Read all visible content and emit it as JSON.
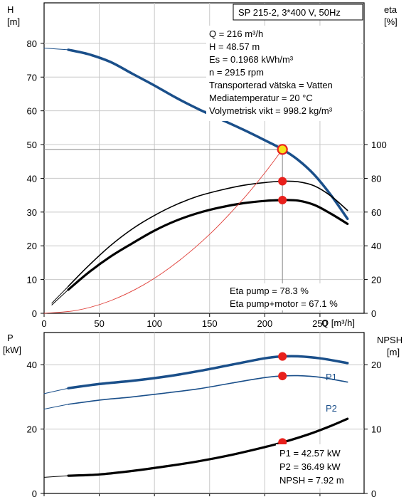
{
  "title_box": "SP 215-2, 3*400 V, 50Hz",
  "info_lines": [
    "Q = 216 m³/h",
    "H = 48.57 m",
    "Es = 0.1968 kWh/m³",
    "n = 2915 rpm",
    "Transporterad vätska = Vatten",
    "Mediatemperatur = 20 °C",
    "Volymetrisk vikt = 998.2 kg/m³"
  ],
  "eta_notes": [
    "Eta pump = 78.3 %",
    "Eta pump+motor = 67.1 %"
  ],
  "power_notes": [
    "P1 = 42.57 kW",
    "P2 = 36.49 kW",
    "NPSH = 7.92 m"
  ],
  "colors": {
    "blue": "#1a4f8a",
    "black": "#000000",
    "red_curve": "#e0403a",
    "marker": "#e8201c",
    "grid": "#c8c8c8",
    "duty_line": "#888888"
  },
  "chart_data": [
    {
      "type": "line",
      "id": "head_efficiency",
      "xlabel": "Q [m³/h]",
      "ylabel": "H\n[m]",
      "y2label": "eta\n[%]",
      "xlim": [
        0,
        290
      ],
      "ylim": [
        0,
        92
      ],
      "y2lim": [
        0,
        184
      ],
      "xticks": [
        0,
        50,
        100,
        150,
        200,
        250
      ],
      "yticks": [
        0,
        10,
        20,
        30,
        40,
        50,
        60,
        70,
        80
      ],
      "y2ticks": [
        0,
        20,
        40,
        60,
        80,
        100
      ],
      "grid": true,
      "duty_point": {
        "x": 216,
        "y": 48.57
      },
      "series": [
        {
          "key": "head",
          "axis": "left",
          "color": "blue",
          "width": 3.5,
          "x": [
            22,
            40,
            60,
            80,
            100,
            120,
            140,
            160,
            180,
            200,
            216,
            230,
            245,
            260,
            275
          ],
          "y": [
            78.1,
            76.8,
            74.5,
            71.0,
            67.5,
            63.8,
            60.5,
            57.5,
            54.5,
            51.3,
            48.57,
            45.5,
            41.0,
            35.0,
            28.0
          ]
        },
        {
          "key": "eta_pump",
          "axis": "right",
          "color": "black",
          "width": 1.6,
          "x": [
            22,
            40,
            60,
            80,
            100,
            120,
            140,
            160,
            180,
            200,
            216,
            230,
            245,
            260,
            275
          ],
          "y": [
            16.0,
            28.0,
            40.0,
            50.0,
            58.0,
            64.5,
            69.5,
            73.0,
            75.8,
            77.5,
            78.3,
            78.0,
            75.5,
            69.5,
            61.0
          ]
        },
        {
          "key": "eta_pump_motor",
          "axis": "right",
          "color": "black",
          "width": 3.2,
          "x": [
            22,
            40,
            60,
            80,
            100,
            120,
            140,
            160,
            180,
            200,
            216,
            230,
            245,
            260,
            275
          ],
          "y": [
            14.0,
            24.0,
            33.5,
            41.5,
            49.0,
            55.0,
            59.5,
            62.8,
            65.2,
            66.6,
            67.1,
            66.8,
            64.2,
            59.0,
            53.0
          ]
        },
        {
          "key": "eta_extension",
          "axis": "right",
          "color": "black",
          "width": 1.0,
          "x": [
            7,
            22
          ],
          "y": [
            6.0,
            16.0
          ]
        },
        {
          "key": "eta2_extension",
          "axis": "right",
          "color": "black",
          "width": 1.0,
          "x": [
            7,
            22
          ],
          "y": [
            5.0,
            14.0
          ]
        },
        {
          "key": "system_curve",
          "axis": "left",
          "color": "red_curve",
          "width": 0.9,
          "x": [
            0,
            30,
            60,
            90,
            120,
            150,
            180,
            200,
            216
          ],
          "y": [
            0,
            0.9,
            3.7,
            8.4,
            15.0,
            23.4,
            33.7,
            41.6,
            48.57
          ]
        },
        {
          "key": "head_extension",
          "axis": "left",
          "color": "blue",
          "width": 1.0,
          "x": [
            0,
            22
          ],
          "y": [
            78.6,
            78.1
          ]
        }
      ],
      "markers": [
        {
          "x": 216,
          "y": 48.57,
          "axis": "left",
          "style": "duty"
        },
        {
          "x": 216,
          "y": 78.3,
          "axis": "right",
          "style": "dot"
        },
        {
          "x": 216,
          "y": 67.1,
          "axis": "right",
          "style": "dot"
        }
      ]
    },
    {
      "type": "line",
      "id": "power_npsh",
      "ylabel": "P\n[kW]",
      "y2label": "NPSH\n[m]",
      "xlim": [
        0,
        290
      ],
      "ylim": [
        0,
        50
      ],
      "y2lim": [
        0,
        25
      ],
      "yticks": [
        0,
        20,
        40
      ],
      "y2ticks": [
        0,
        10,
        20
      ],
      "grid": true,
      "series": [
        {
          "key": "P1",
          "name": "P1",
          "axis": "left",
          "color": "blue",
          "width": 3.5,
          "x": [
            22,
            50,
            80,
            110,
            140,
            170,
            200,
            216,
            230,
            250,
            275
          ],
          "y": [
            32.7,
            34.0,
            35.0,
            36.3,
            38.0,
            40.0,
            42.0,
            42.57,
            42.6,
            42.0,
            40.5
          ]
        },
        {
          "key": "P1_ext",
          "axis": "left",
          "color": "blue",
          "width": 1.0,
          "x": [
            0,
            22
          ],
          "y": [
            31.0,
            32.7
          ]
        },
        {
          "key": "P2",
          "name": "P2",
          "axis": "left",
          "color": "blue",
          "width": 1.6,
          "x": [
            22,
            50,
            80,
            110,
            140,
            170,
            200,
            216,
            230,
            250,
            275
          ],
          "y": [
            27.7,
            29.0,
            30.0,
            31.2,
            32.5,
            34.3,
            36.0,
            36.49,
            36.6,
            36.1,
            34.6
          ]
        },
        {
          "key": "P2_ext",
          "axis": "left",
          "color": "blue",
          "width": 1.0,
          "x": [
            0,
            22
          ],
          "y": [
            26.2,
            27.7
          ]
        },
        {
          "key": "NPSH",
          "axis": "right",
          "color": "black",
          "width": 3.2,
          "x": [
            22,
            50,
            80,
            110,
            140,
            170,
            200,
            216,
            240,
            260,
            275
          ],
          "y": [
            2.75,
            2.95,
            3.5,
            4.2,
            5.0,
            6.0,
            7.2,
            7.92,
            9.2,
            10.5,
            11.6
          ]
        },
        {
          "key": "NPSH_ext",
          "axis": "right",
          "color": "black",
          "width": 1.0,
          "x": [
            0,
            22
          ],
          "y": [
            2.5,
            2.75
          ]
        }
      ],
      "markers": [
        {
          "x": 216,
          "y": 42.57,
          "axis": "left",
          "style": "dot"
        },
        {
          "x": 216,
          "y": 36.49,
          "axis": "left",
          "style": "dot"
        },
        {
          "x": 216,
          "y": 7.92,
          "axis": "right",
          "style": "dot"
        }
      ]
    }
  ]
}
